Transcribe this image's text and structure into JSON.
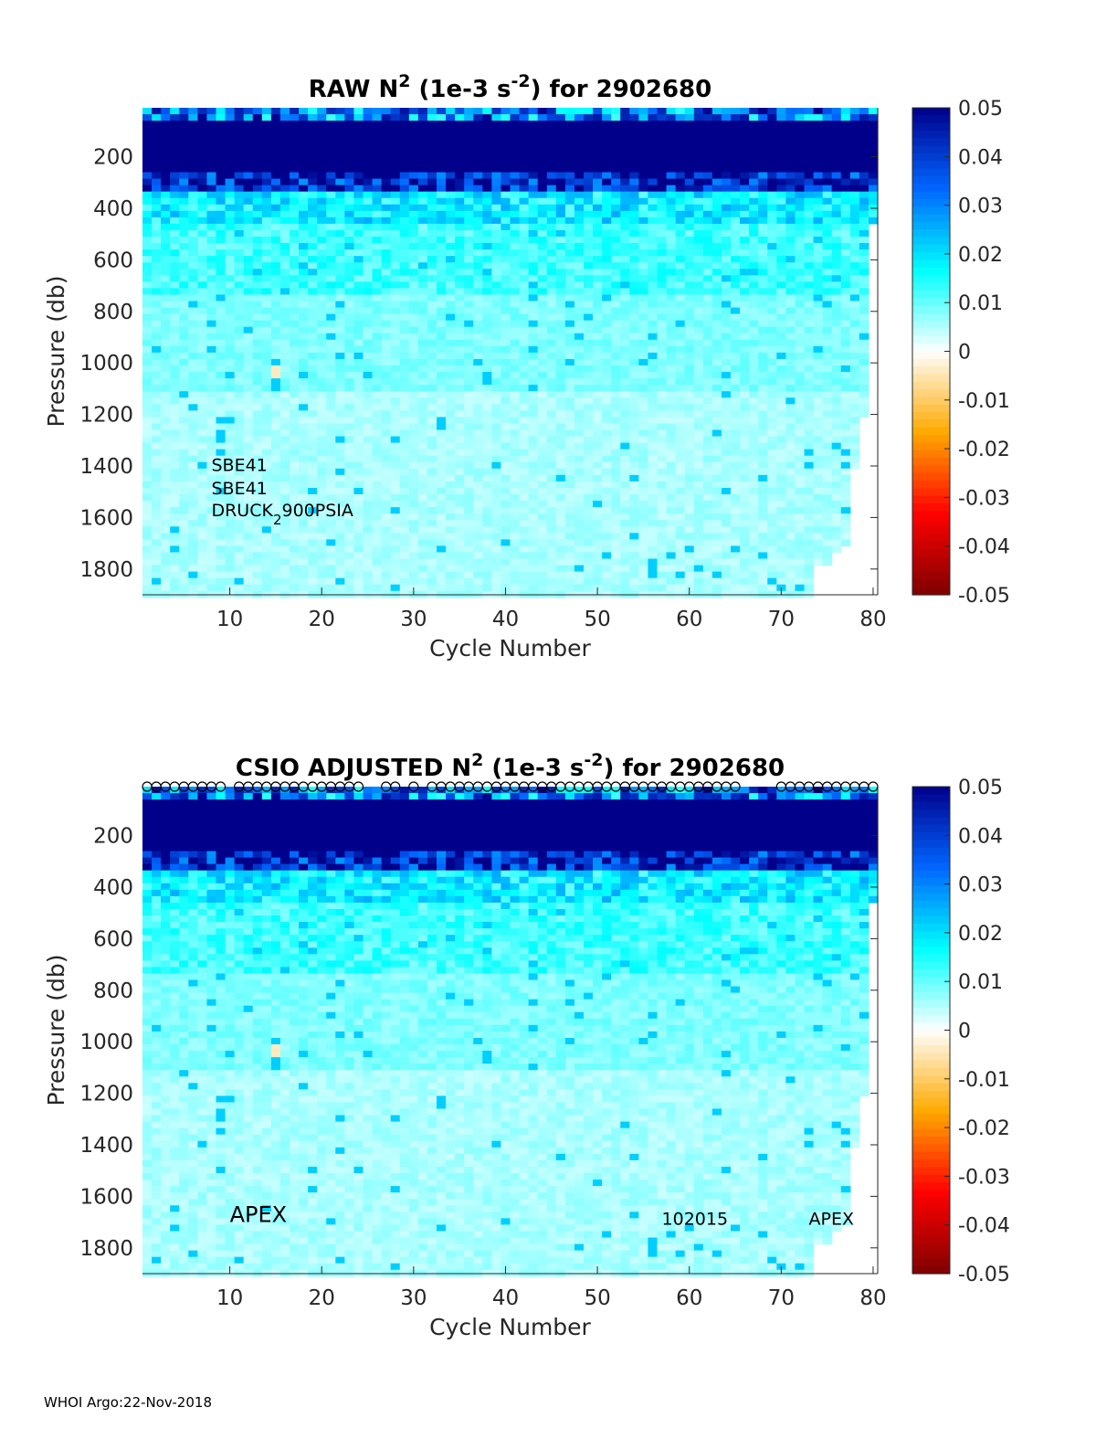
{
  "chart_data": [
    {
      "type": "heatmap",
      "title_parts": [
        "RAW N",
        "2",
        " (1e-3 s",
        "-2",
        ") for 2902680"
      ],
      "xlabel": "Cycle Number",
      "ylabel": "Pressure (db)",
      "x_ticks": [
        "10",
        "20",
        "30",
        "40",
        "50",
        "60",
        "70",
        "80"
      ],
      "x_tick_values": [
        10,
        20,
        30,
        40,
        50,
        60,
        70,
        80
      ],
      "y_ticks": [
        "200",
        "400",
        "600",
        "800",
        "1000",
        "1200",
        "1400",
        "1600",
        "1800"
      ],
      "y_tick_values": [
        200,
        400,
        600,
        800,
        1000,
        1200,
        1400,
        1600,
        1800
      ],
      "xlim": [
        1,
        80
      ],
      "ylim": [
        1900,
        10
      ],
      "y_reversed": true,
      "colorbar_ticks": [
        "0.05",
        "0.04",
        "0.03",
        "0.02",
        "0.01",
        "0",
        "-0.01",
        "-0.02",
        "-0.03",
        "-0.04",
        "-0.05"
      ],
      "colorbar_range": [
        -0.05,
        0.05
      ],
      "colormap": [
        "#7f0000",
        "#ff0000",
        "#ffaa00",
        "#ffffff",
        "#00ffff",
        "#0066ff",
        "#00008b"
      ],
      "annotations": [
        {
          "text": "SBE41",
          "x": 8,
          "y": 1420
        },
        {
          "text": "SBE41",
          "x": 8,
          "y": 1510
        },
        {
          "parts": [
            "DRUCK",
            "2",
            "900PSIA"
          ],
          "x": 8,
          "y": 1595
        }
      ],
      "show_markers": false
    },
    {
      "type": "heatmap",
      "title_parts": [
        "CSIO  ADJUSTED N",
        "2",
        " (1e-3 s",
        "-2",
        ") for 2902680"
      ],
      "xlabel": "Cycle Number",
      "ylabel": "Pressure (db)",
      "x_ticks": [
        "10",
        "20",
        "30",
        "40",
        "50",
        "60",
        "70",
        "80"
      ],
      "x_tick_values": [
        10,
        20,
        30,
        40,
        50,
        60,
        70,
        80
      ],
      "y_ticks": [
        "200",
        "400",
        "600",
        "800",
        "1000",
        "1200",
        "1400",
        "1600",
        "1800"
      ],
      "y_tick_values": [
        200,
        400,
        600,
        800,
        1000,
        1200,
        1400,
        1600,
        1800
      ],
      "xlim": [
        1,
        80
      ],
      "ylim": [
        1900,
        10
      ],
      "y_reversed": true,
      "colorbar_ticks": [
        "0.05",
        "0.04",
        "0.03",
        "0.02",
        "0.01",
        "0",
        "-0.01",
        "-0.02",
        "-0.03",
        "-0.04",
        "-0.05"
      ],
      "colorbar_range": [
        -0.05,
        0.05
      ],
      "colormap": [
        "#7f0000",
        "#ff0000",
        "#ffaa00",
        "#ffffff",
        "#00ffff",
        "#0066ff",
        "#00008b"
      ],
      "annotations": [
        {
          "text": "APEX",
          "x": 10,
          "y": 1700,
          "size": "large"
        },
        {
          "text": "102015",
          "x": 57,
          "y": 1710
        },
        {
          "text": "APEX",
          "x": 73,
          "y": 1710
        }
      ],
      "show_markers": true,
      "marker_missing_cycles": [
        10,
        25,
        26,
        29,
        31,
        66,
        67,
        68,
        69
      ]
    }
  ],
  "field": {
    "max_depth_by_cycle_end": [
      [
        73,
        1900
      ],
      [
        74,
        1780
      ],
      [
        75,
        1780
      ],
      [
        76,
        1720
      ],
      [
        77,
        1700
      ],
      [
        78,
        1400
      ],
      [
        79,
        1200
      ],
      [
        80,
        440
      ]
    ],
    "anomaly": {
      "cycle": 15,
      "p_min": 1000,
      "p_max": 1050,
      "value": -0.004
    }
  },
  "footer": "WHOI Argo:22-Nov-2018"
}
